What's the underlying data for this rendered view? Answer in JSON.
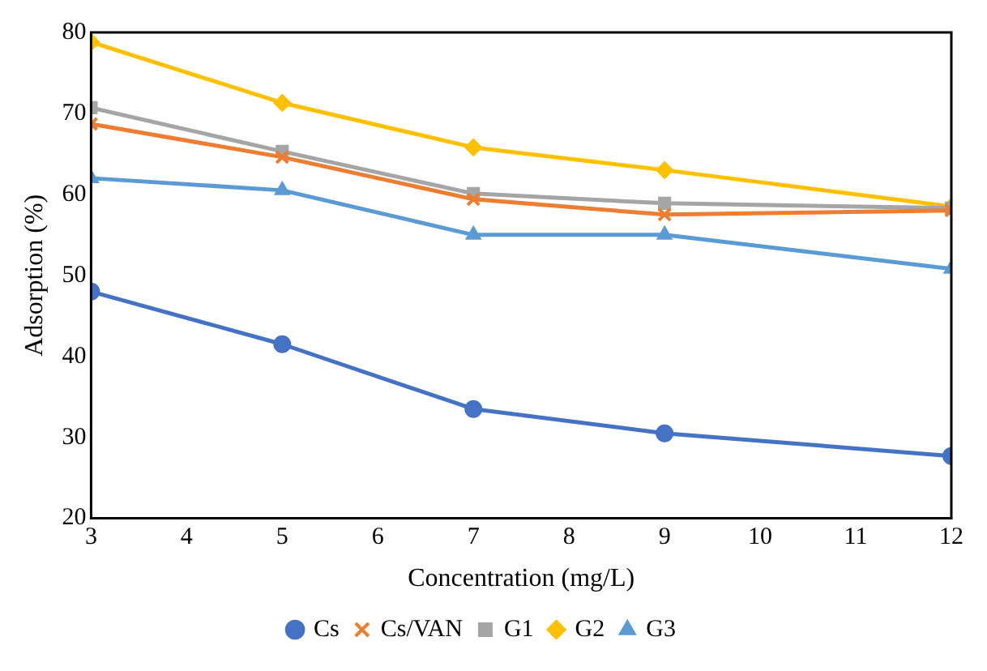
{
  "chart_data": {
    "type": "line",
    "xlabel": "Concentration (mg/L)",
    "ylabel": "Adsorption (%)",
    "x": [
      3,
      5,
      7,
      9,
      12
    ],
    "xlim": [
      3,
      12
    ],
    "xticks": [
      3,
      4,
      5,
      6,
      7,
      8,
      9,
      10,
      11,
      12
    ],
    "ylim": [
      20,
      80
    ],
    "yticks": [
      20,
      30,
      40,
      50,
      60,
      70,
      80
    ],
    "grid": false,
    "legend": "bottom",
    "line_style": "solid",
    "series": [
      {
        "name": "Cs",
        "color": "#4472c4",
        "marker": "circle",
        "values": [
          48,
          41.5,
          33.5,
          30.5,
          27.7
        ]
      },
      {
        "name": "Cs/VAN",
        "color": "#ed7d31",
        "marker": "cross",
        "values": [
          68.7,
          64.6,
          59.4,
          57.5,
          58
        ]
      },
      {
        "name": "G1",
        "color": "#a5a5a5",
        "marker": "square",
        "values": [
          70.7,
          65.3,
          60.1,
          58.9,
          58.3
        ]
      },
      {
        "name": "G2",
        "color": "#ffc000",
        "marker": "diamond",
        "values": [
          78.8,
          71.3,
          65.8,
          63,
          58.5
        ]
      },
      {
        "name": "G3",
        "color": "#5b9bd5",
        "marker": "triangle",
        "values": [
          62,
          60.5,
          55,
          55,
          50.8
        ]
      }
    ]
  }
}
